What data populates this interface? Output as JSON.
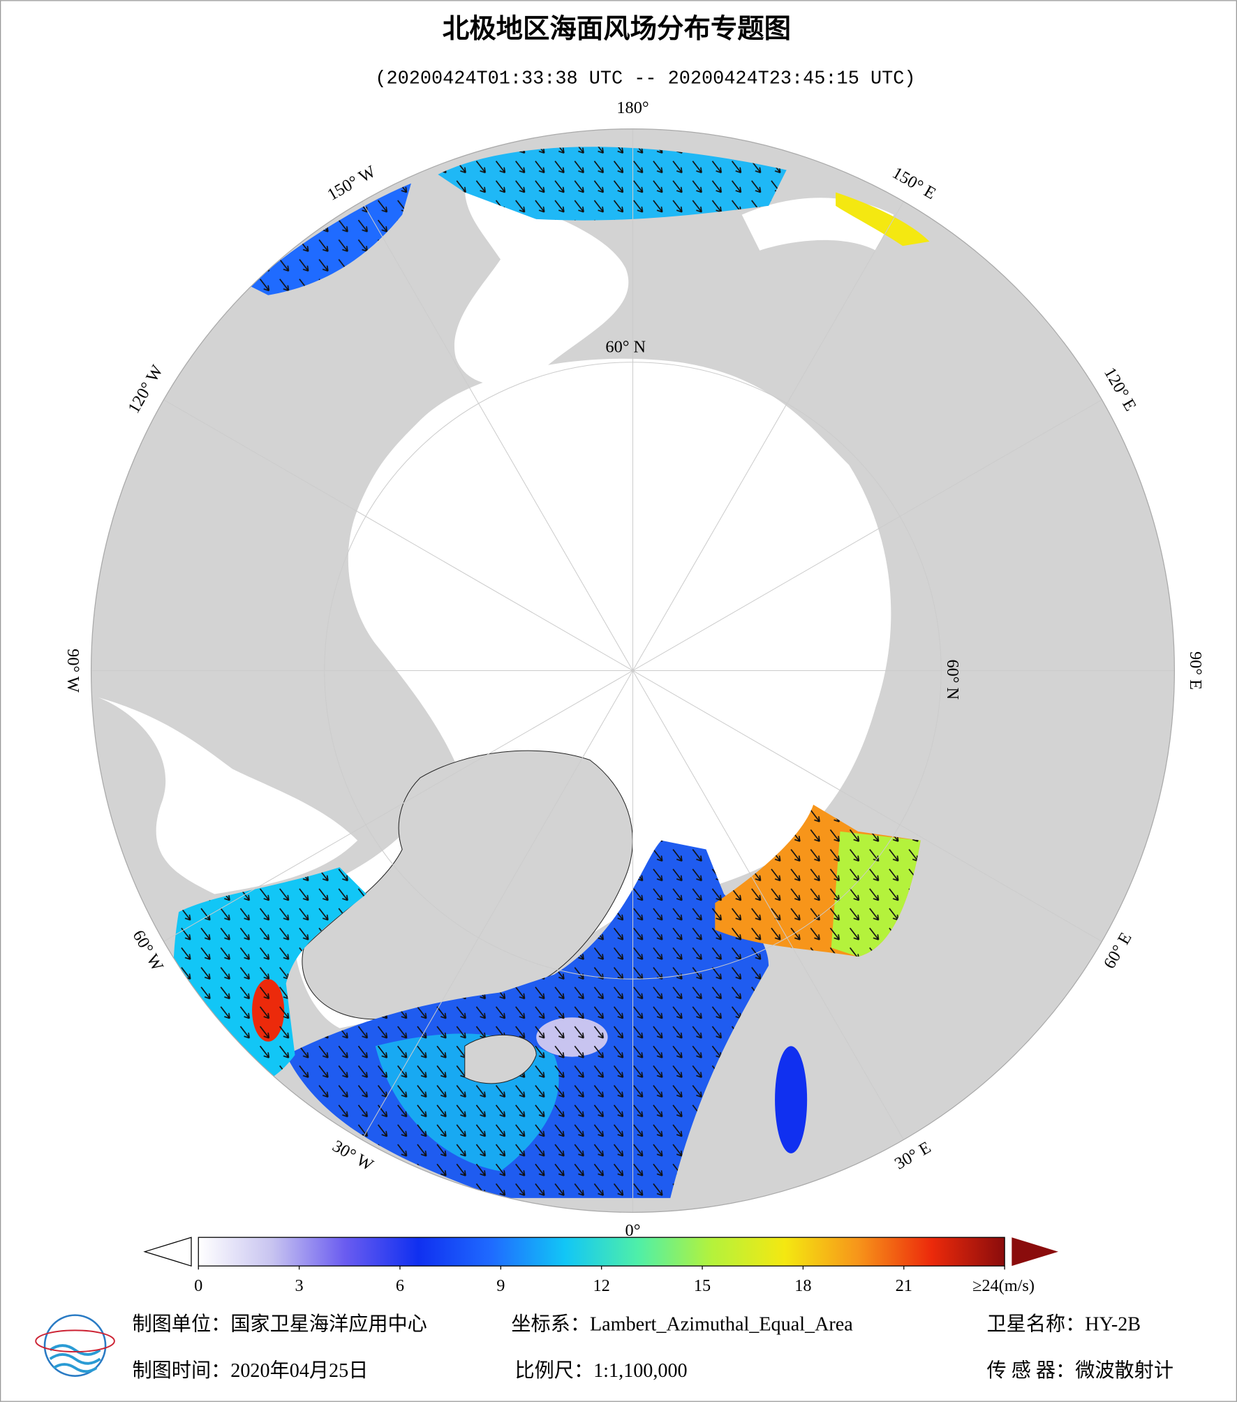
{
  "title": "北极地区海面风场分布专题图",
  "subtitle": "(20200424T01:33:38 UTC -- 20200424T23:45:15 UTC)",
  "map": {
    "longitude_labels": [
      "180°",
      "150° E",
      "120° E",
      "90° E",
      "60° E",
      "30° E",
      "0°",
      "30° W",
      "60° W",
      "90° W",
      "120° W",
      "150° W"
    ],
    "latitude_label": "60° N"
  },
  "colorbar": {
    "lim": [
      0,
      24
    ],
    "ticks": [
      0,
      3,
      6,
      9,
      12,
      15,
      18,
      21,
      {
        "value": 24,
        "label": "≥24(m/s)"
      }
    ],
    "colors": [
      "#ffffff",
      "#c8c4f0",
      "#6a5cf0",
      "#1030f0",
      "#1f6bff",
      "#12c6f6",
      "#4fefa8",
      "#b4f23c",
      "#f4e811",
      "#f7951a",
      "#ec2a0b",
      "#8a0c0c"
    ]
  },
  "footer": {
    "unit": "制图单位：国家卫星海洋应用中心",
    "coordinate_system": "坐标系：Lambert_Azimuthal_Equal_Area",
    "satellite": "卫星名称：HY-2B",
    "date": "制图时间：2020年04月25日",
    "scale": "比例尺：1:1,100,000",
    "sensor": "传 感 器：微波散射计"
  }
}
